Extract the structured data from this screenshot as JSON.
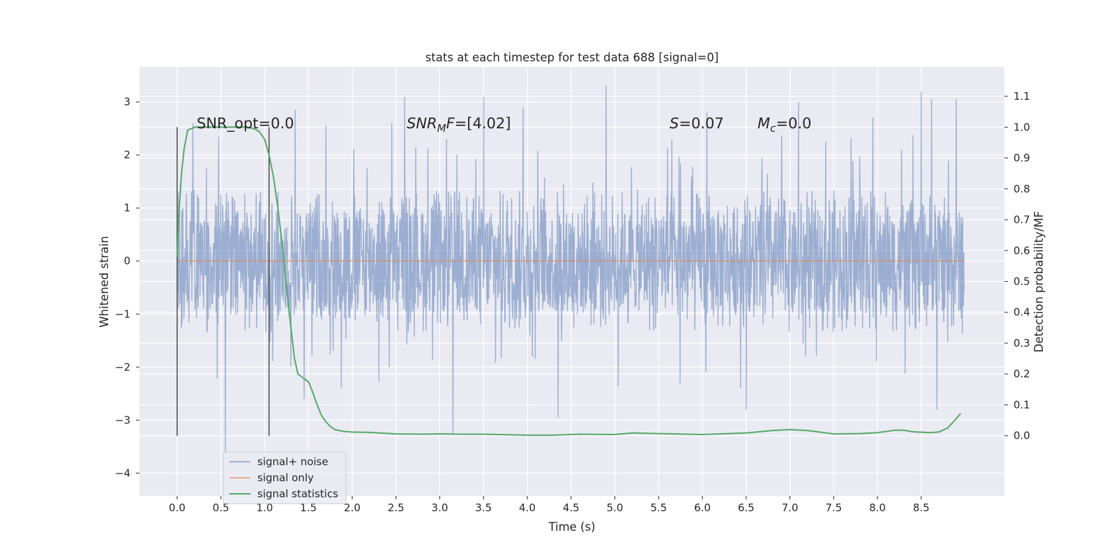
{
  "chart_data": {
    "type": "line",
    "title": "stats at each timestep for test data 688 [signal=0]",
    "xlabel": "Time (s)",
    "ylabel": "Whitened strain",
    "y2label": "Detection probability/MF",
    "xlim": [
      -0.43,
      9.45
    ],
    "ylim": [
      -4.43,
      3.66
    ],
    "y2lim": [
      -0.195,
      1.195
    ],
    "x_ticks": [
      "0.0",
      "0.5",
      "1.0",
      "1.5",
      "2.0",
      "2.5",
      "3.0",
      "3.5",
      "4.0",
      "4.5",
      "5.0",
      "5.5",
      "6.0",
      "6.5",
      "7.0",
      "7.5",
      "8.0",
      "8.5"
    ],
    "y_ticks": [
      "3",
      "2",
      "1",
      "0",
      "−1",
      "−2",
      "−3",
      "−4"
    ],
    "y2_ticks": [
      "1.1",
      "1.0",
      "0.9",
      "0.8",
      "0.7",
      "0.6",
      "0.5",
      "0.4",
      "0.3",
      "0.2",
      "0.1",
      "0.0"
    ],
    "grid": true,
    "legend_position": "lower-left",
    "colors": {
      "background": "#eaeaf2",
      "noise": "#4c72b0",
      "signal": "#dd8452",
      "stats": "#55a868",
      "markers": "#555555"
    },
    "annotations": {
      "snr_opt": "SNR_opt=0.0",
      "snr_mf_base": "SNR",
      "snr_mf_sub1": "M",
      "snr_mf_f": "F",
      "snr_mf_val": "=[4.02]",
      "s_sym": "S",
      "s_val": "=0.07",
      "mc_sym": "M",
      "mc_sub": "c",
      "mc_val": "=0.0"
    },
    "event_markers": [
      0.0,
      1.05
    ],
    "series": [
      {
        "name": "signal+ noise",
        "kind": "noise",
        "x_range": [
          0.0,
          8.99
        ],
        "envelope": {
          "core": 0.8,
          "bulk": 1.35,
          "peak_max": 3.3,
          "peak_min": -3.7
        },
        "notable_peaks": [
          [
            0.18,
            2.6
          ],
          [
            0.55,
            -3.6
          ],
          [
            1.35,
            2.85
          ],
          [
            1.7,
            2.55
          ],
          [
            2.45,
            2.6
          ],
          [
            2.6,
            3.1
          ],
          [
            3.5,
            3.1
          ],
          [
            3.95,
            2.9
          ],
          [
            4.9,
            3.3
          ],
          [
            6.05,
            2.8
          ],
          [
            7.1,
            3.0
          ],
          [
            7.95,
            2.7
          ],
          [
            8.5,
            3.2
          ],
          [
            8.62,
            3.05
          ],
          [
            8.9,
            3.05
          ],
          [
            3.15,
            -3.25
          ],
          [
            4.35,
            -2.95
          ],
          [
            6.5,
            -2.8
          ],
          [
            8.68,
            -2.8
          ],
          [
            1.45,
            -2.6
          ]
        ]
      },
      {
        "name": "signal only",
        "kind": "flat",
        "x": [
          0.0,
          8.99
        ],
        "y": [
          0.0,
          0.0
        ]
      },
      {
        "name": "signal statistics",
        "kind": "probability",
        "axis": "right",
        "x": [
          0.0,
          0.02,
          0.05,
          0.08,
          0.12,
          0.16,
          0.2,
          0.3,
          0.4,
          0.5,
          0.6,
          0.7,
          0.8,
          0.88,
          0.94,
          1.0,
          1.05,
          1.1,
          1.15,
          1.2,
          1.25,
          1.3,
          1.34,
          1.38,
          1.45,
          1.5,
          1.55,
          1.6,
          1.65,
          1.7,
          1.75,
          1.8,
          1.9,
          2.0,
          2.2,
          2.5,
          2.8,
          3.0,
          3.2,
          3.5,
          3.8,
          4.0,
          4.3,
          4.6,
          5.0,
          5.2,
          5.5,
          6.0,
          6.5,
          6.8,
          7.0,
          7.2,
          7.5,
          7.8,
          8.0,
          8.2,
          8.3,
          8.4,
          8.6,
          8.7,
          8.8,
          8.9,
          8.95
        ],
        "y": [
          0.58,
          0.72,
          0.85,
          0.93,
          0.99,
          0.995,
          1.0,
          1.0,
          1.0,
          1.0,
          1.0,
          1.0,
          1.0,
          0.995,
          0.985,
          0.96,
          0.91,
          0.84,
          0.74,
          0.62,
          0.48,
          0.35,
          0.25,
          0.2,
          0.185,
          0.175,
          0.14,
          0.1,
          0.065,
          0.045,
          0.03,
          0.02,
          0.014,
          0.012,
          0.011,
          0.006,
          0.005,
          0.006,
          0.005,
          0.005,
          0.003,
          0.002,
          0.002,
          0.005,
          0.004,
          0.009,
          0.007,
          0.004,
          0.009,
          0.017,
          0.02,
          0.017,
          0.006,
          0.007,
          0.01,
          0.018,
          0.018,
          0.013,
          0.01,
          0.012,
          0.025,
          0.055,
          0.072
        ]
      }
    ]
  }
}
